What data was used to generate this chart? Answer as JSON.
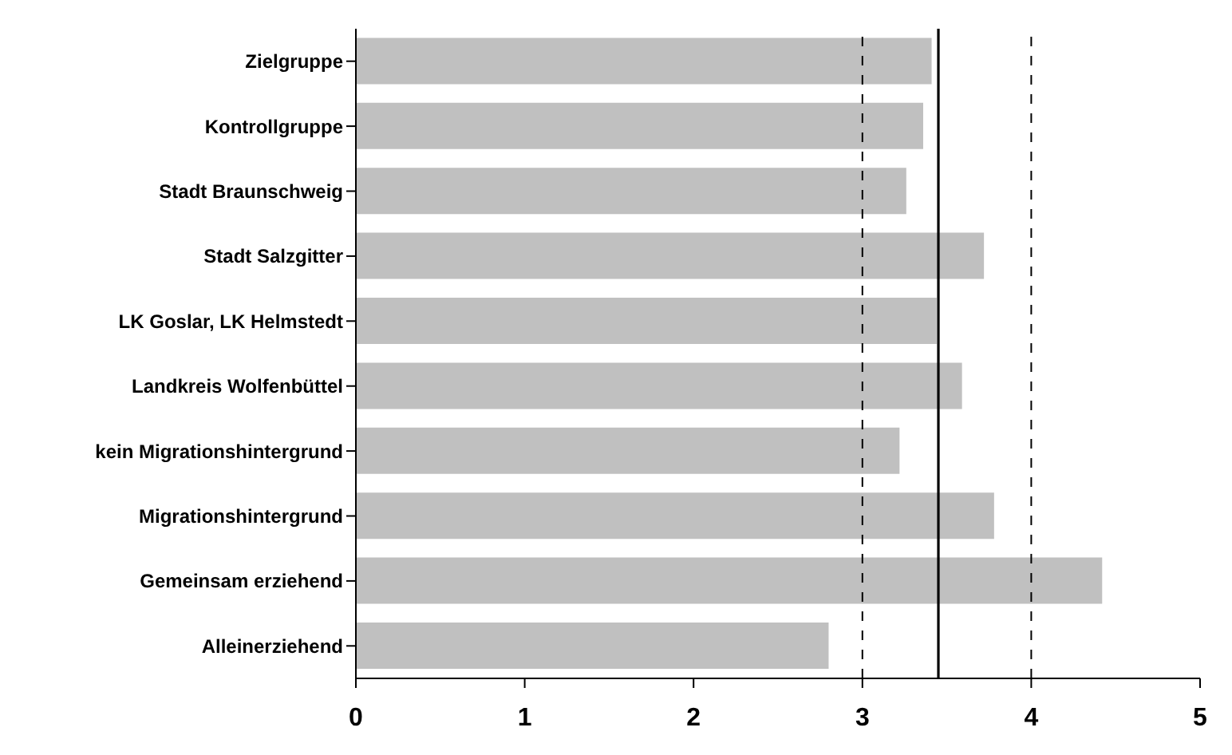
{
  "chart_data": {
    "type": "bar",
    "orientation": "horizontal",
    "categories": [
      "Zielgruppe",
      "Kontrollgruppe",
      "Stadt Braunschweig",
      "Stadt Salzgitter",
      "LK Goslar, LK Helmstedt",
      "Landkreis Wolfenbüttel",
      "kein Migrationshintergrund",
      "Migrationshintergrund",
      "Gemeinsam erziehend",
      "Alleinerziehend"
    ],
    "values": [
      3.41,
      3.36,
      3.26,
      3.72,
      3.44,
      3.59,
      3.22,
      3.78,
      4.42,
      2.8
    ],
    "color": "#c0c0c0",
    "xlim": [
      0,
      5
    ],
    "xticks": [
      0,
      1,
      2,
      3,
      4,
      5
    ],
    "grid": false,
    "ref_lines": [
      {
        "axis": "x",
        "value": 3,
        "line_style": "dashed",
        "color": "#000000"
      },
      {
        "axis": "x",
        "value": 4,
        "line_style": "dashed",
        "color": "#000000"
      },
      {
        "axis": "x",
        "value": 3.45,
        "line_style": "solid",
        "color": "#000000"
      }
    ]
  }
}
